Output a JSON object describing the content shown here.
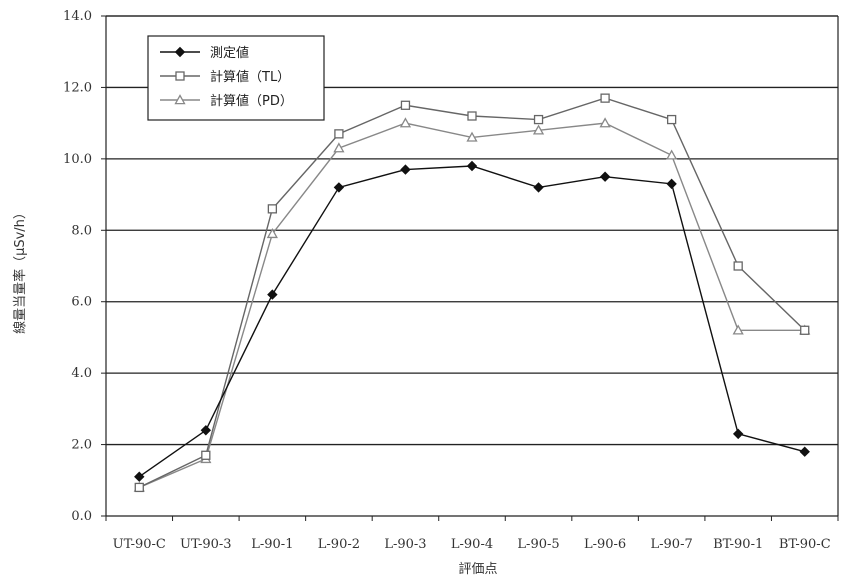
{
  "chart_data": {
    "type": "line",
    "title": "",
    "xlabel": "評価点",
    "ylabel": "線量当量率（μSv/h）",
    "categories": [
      "UT-90-C",
      "UT-90-3",
      "L-90-1",
      "L-90-2",
      "L-90-3",
      "L-90-4",
      "L-90-5",
      "L-90-6",
      "L-90-7",
      "BT-90-1",
      "BT-90-C"
    ],
    "ytick_labels": [
      "0.0",
      "2.0",
      "4.0",
      "6.0",
      "8.0",
      "10.0",
      "12.0",
      "14.0"
    ],
    "ylim": [
      0,
      14
    ],
    "grid": true,
    "legend_position": "top-left",
    "series": [
      {
        "name": "測定値",
        "marker": "filled-diamond",
        "color": "#111111",
        "values": [
          1.1,
          2.4,
          6.2,
          9.2,
          9.7,
          9.8,
          9.2,
          9.5,
          9.3,
          2.3,
          1.8
        ]
      },
      {
        "name": "計算値（TL）",
        "marker": "open-square",
        "color": "#666666",
        "values": [
          0.8,
          1.7,
          8.6,
          10.7,
          11.5,
          11.2,
          11.1,
          11.7,
          11.1,
          7.0,
          5.2
        ]
      },
      {
        "name": "計算値（PD）",
        "marker": "open-triangle",
        "color": "#888888",
        "values": [
          0.8,
          1.6,
          7.9,
          10.3,
          11.0,
          10.6,
          10.8,
          11.0,
          10.1,
          5.2,
          5.2
        ]
      }
    ]
  }
}
